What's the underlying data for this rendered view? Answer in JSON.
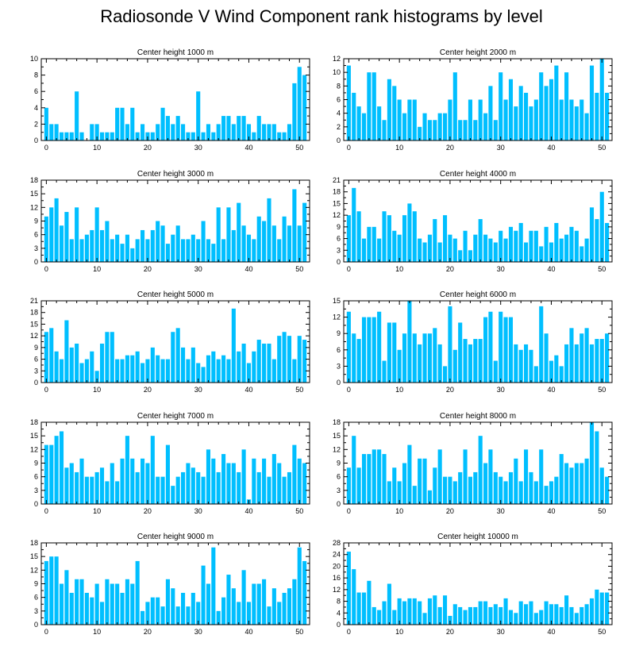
{
  "title": "Radiosonde V Wind Component rank histograms by level",
  "bar_color": "#00BFFF",
  "chart_data": [
    {
      "type": "bar",
      "title": "Center height 1000 m",
      "ylim": [
        0,
        10
      ],
      "yticks": [
        0,
        2,
        4,
        6,
        8,
        10
      ],
      "xticks": [
        0,
        10,
        20,
        30,
        40,
        50
      ],
      "x": [
        0,
        1,
        2,
        3,
        4,
        5,
        6,
        7,
        8,
        9,
        10,
        11,
        12,
        13,
        14,
        15,
        16,
        17,
        18,
        19,
        20,
        21,
        22,
        23,
        24,
        25,
        26,
        27,
        28,
        29,
        30,
        31,
        32,
        33,
        34,
        35,
        36,
        37,
        38,
        39,
        40,
        41,
        42,
        43,
        44,
        45,
        46,
        47,
        48,
        49,
        50,
        51
      ],
      "values": [
        4,
        2,
        2,
        1,
        1,
        1,
        6,
        1,
        0,
        2,
        2,
        1,
        1,
        1,
        4,
        4,
        2,
        4,
        1,
        2,
        1,
        1,
        2,
        4,
        3,
        2,
        3,
        2,
        1,
        1,
        6,
        1,
        2,
        1,
        2,
        3,
        3,
        2,
        3,
        3,
        2,
        1,
        3,
        2,
        2,
        2,
        1,
        1,
        2,
        7,
        9,
        8
      ]
    },
    {
      "type": "bar",
      "title": "Center height 2000 m",
      "ylim": [
        0,
        12
      ],
      "yticks": [
        0,
        2,
        4,
        6,
        8,
        10,
        12
      ],
      "xticks": [
        0,
        10,
        20,
        30,
        40,
        50
      ],
      "x": [
        0,
        1,
        2,
        3,
        4,
        5,
        6,
        7,
        8,
        9,
        10,
        11,
        12,
        13,
        14,
        15,
        16,
        17,
        18,
        19,
        20,
        21,
        22,
        23,
        24,
        25,
        26,
        27,
        28,
        29,
        30,
        31,
        32,
        33,
        34,
        35,
        36,
        37,
        38,
        39,
        40,
        41,
        42,
        43,
        44,
        45,
        46,
        47,
        48,
        49,
        50,
        51
      ],
      "values": [
        11,
        7,
        5,
        4,
        10,
        10,
        5,
        3,
        9,
        8,
        6,
        4,
        6,
        6,
        2,
        4,
        3,
        3,
        4,
        4,
        6,
        10,
        3,
        3,
        6,
        3,
        6,
        4,
        8,
        3,
        10,
        6,
        9,
        5,
        8,
        7,
        5,
        6,
        10,
        8,
        9,
        11,
        6,
        10,
        6,
        5,
        6,
        4,
        11,
        7,
        12,
        7
      ]
    },
    {
      "type": "bar",
      "title": "Center height 3000 m",
      "ylim": [
        0,
        18
      ],
      "yticks": [
        0,
        3,
        6,
        9,
        12,
        15,
        18
      ],
      "xticks": [
        0,
        10,
        20,
        30,
        40,
        50
      ],
      "x": [
        0,
        1,
        2,
        3,
        4,
        5,
        6,
        7,
        8,
        9,
        10,
        11,
        12,
        13,
        14,
        15,
        16,
        17,
        18,
        19,
        20,
        21,
        22,
        23,
        24,
        25,
        26,
        27,
        28,
        29,
        30,
        31,
        32,
        33,
        34,
        35,
        36,
        37,
        38,
        39,
        40,
        41,
        42,
        43,
        44,
        45,
        46,
        47,
        48,
        49,
        50,
        51
      ],
      "values": [
        10,
        12,
        14,
        8,
        11,
        5,
        12,
        5,
        6,
        7,
        12,
        7,
        9,
        5,
        6,
        4,
        6,
        3,
        5,
        7,
        5,
        7,
        9,
        8,
        4,
        6,
        8,
        5,
        5,
        6,
        5,
        9,
        5,
        4,
        12,
        5,
        12,
        7,
        13,
        8,
        6,
        5,
        10,
        9,
        14,
        8,
        5,
        10,
        8,
        16,
        8,
        13
      ]
    },
    {
      "type": "bar",
      "title": "Center height 4000 m",
      "ylim": [
        0,
        21
      ],
      "yticks": [
        0,
        3,
        6,
        9,
        12,
        15,
        18,
        21
      ],
      "xticks": [
        0,
        10,
        20,
        30,
        40,
        50
      ],
      "x": [
        0,
        1,
        2,
        3,
        4,
        5,
        6,
        7,
        8,
        9,
        10,
        11,
        12,
        13,
        14,
        15,
        16,
        17,
        18,
        19,
        20,
        21,
        22,
        23,
        24,
        25,
        26,
        27,
        28,
        29,
        30,
        31,
        32,
        33,
        34,
        35,
        36,
        37,
        38,
        39,
        40,
        41,
        42,
        43,
        44,
        45,
        46,
        47,
        48,
        49,
        50,
        51
      ],
      "values": [
        12,
        19,
        13,
        6,
        9,
        9,
        6,
        13,
        12,
        8,
        7,
        12,
        15,
        13,
        6,
        5,
        7,
        11,
        5,
        12,
        7,
        6,
        3,
        8,
        3,
        7,
        11,
        7,
        6,
        5,
        8,
        6,
        9,
        8,
        10,
        5,
        8,
        8,
        4,
        9,
        5,
        10,
        6,
        7,
        9,
        8,
        4,
        6,
        14,
        11,
        18,
        10
      ]
    },
    {
      "type": "bar",
      "title": "Center height 5000 m",
      "ylim": [
        0,
        21
      ],
      "yticks": [
        0,
        3,
        6,
        9,
        12,
        15,
        18,
        21
      ],
      "xticks": [
        0,
        10,
        20,
        30,
        40,
        50
      ],
      "x": [
        0,
        1,
        2,
        3,
        4,
        5,
        6,
        7,
        8,
        9,
        10,
        11,
        12,
        13,
        14,
        15,
        16,
        17,
        18,
        19,
        20,
        21,
        22,
        23,
        24,
        25,
        26,
        27,
        28,
        29,
        30,
        31,
        32,
        33,
        34,
        35,
        36,
        37,
        38,
        39,
        40,
        41,
        42,
        43,
        44,
        45,
        46,
        47,
        48,
        49,
        50,
        51
      ],
      "values": [
        13,
        14,
        8,
        6,
        16,
        9,
        10,
        5,
        6,
        8,
        3,
        10,
        13,
        13,
        6,
        6,
        7,
        7,
        8,
        5,
        6,
        9,
        7,
        6,
        6,
        13,
        14,
        9,
        6,
        9,
        5,
        4,
        7,
        8,
        6,
        7,
        6,
        19,
        8,
        10,
        5,
        8,
        11,
        10,
        10,
        6,
        12,
        13,
        12,
        6,
        12,
        11
      ]
    },
    {
      "type": "bar",
      "title": "Center height 6000 m",
      "ylim": [
        0,
        15
      ],
      "yticks": [
        0,
        3,
        6,
        9,
        12,
        15
      ],
      "xticks": [
        0,
        10,
        20,
        30,
        40,
        50
      ],
      "x": [
        0,
        1,
        2,
        3,
        4,
        5,
        6,
        7,
        8,
        9,
        10,
        11,
        12,
        13,
        14,
        15,
        16,
        17,
        18,
        19,
        20,
        21,
        22,
        23,
        24,
        25,
        26,
        27,
        28,
        29,
        30,
        31,
        32,
        33,
        34,
        35,
        36,
        37,
        38,
        39,
        40,
        41,
        42,
        43,
        44,
        45,
        46,
        47,
        48,
        49,
        50,
        51
      ],
      "values": [
        13,
        9,
        8,
        12,
        12,
        12,
        13,
        4,
        11,
        11,
        6,
        9,
        15,
        9,
        7,
        9,
        9,
        10,
        7,
        3,
        14,
        6,
        11,
        8,
        7,
        8,
        8,
        12,
        13,
        4,
        13,
        12,
        12,
        7,
        6,
        7,
        6,
        3,
        14,
        9,
        4,
        5,
        3,
        7,
        10,
        7,
        9,
        10,
        7,
        8,
        8,
        9
      ]
    },
    {
      "type": "bar",
      "title": "Center height 7000 m",
      "ylim": [
        0,
        18
      ],
      "yticks": [
        0,
        3,
        6,
        9,
        12,
        15,
        18
      ],
      "xticks": [
        0,
        10,
        20,
        30,
        40,
        50
      ],
      "x": [
        0,
        1,
        2,
        3,
        4,
        5,
        6,
        7,
        8,
        9,
        10,
        11,
        12,
        13,
        14,
        15,
        16,
        17,
        18,
        19,
        20,
        21,
        22,
        23,
        24,
        25,
        26,
        27,
        28,
        29,
        30,
        31,
        32,
        33,
        34,
        35,
        36,
        37,
        38,
        39,
        40,
        41,
        42,
        43,
        44,
        45,
        46,
        47,
        48,
        49,
        50,
        51
      ],
      "values": [
        13,
        13,
        15,
        16,
        8,
        9,
        7,
        10,
        6,
        6,
        7,
        8,
        5,
        9,
        5,
        10,
        15,
        10,
        7,
        10,
        9,
        15,
        6,
        6,
        13,
        4,
        6,
        7,
        9,
        8,
        7,
        6,
        12,
        10,
        7,
        11,
        9,
        9,
        7,
        12,
        1,
        10,
        7,
        10,
        6,
        11,
        9,
        6,
        7,
        13,
        10,
        9
      ]
    },
    {
      "type": "bar",
      "title": "Center height 8000 m",
      "ylim": [
        0,
        18
      ],
      "yticks": [
        0,
        3,
        6,
        9,
        12,
        15,
        18
      ],
      "xticks": [
        0,
        10,
        20,
        30,
        40,
        50
      ],
      "x": [
        0,
        1,
        2,
        3,
        4,
        5,
        6,
        7,
        8,
        9,
        10,
        11,
        12,
        13,
        14,
        15,
        16,
        17,
        18,
        19,
        20,
        21,
        22,
        23,
        24,
        25,
        26,
        27,
        28,
        29,
        30,
        31,
        32,
        33,
        34,
        35,
        36,
        37,
        38,
        39,
        40,
        41,
        42,
        43,
        44,
        45,
        46,
        47,
        48,
        49,
        50,
        51
      ],
      "values": [
        8,
        15,
        8,
        11,
        11,
        12,
        12,
        11,
        5,
        8,
        5,
        9,
        13,
        4,
        10,
        10,
        3,
        8,
        12,
        6,
        6,
        5,
        7,
        12,
        6,
        7,
        15,
        9,
        12,
        7,
        6,
        5,
        7,
        10,
        5,
        12,
        7,
        5,
        12,
        4,
        5,
        6,
        11,
        9,
        8,
        9,
        9,
        10,
        18,
        16,
        8,
        6
      ]
    },
    {
      "type": "bar",
      "title": "Center height 9000 m",
      "ylim": [
        0,
        18
      ],
      "yticks": [
        0,
        3,
        6,
        9,
        12,
        15,
        18
      ],
      "xticks": [
        0,
        10,
        20,
        30,
        40,
        50
      ],
      "x": [
        0,
        1,
        2,
        3,
        4,
        5,
        6,
        7,
        8,
        9,
        10,
        11,
        12,
        13,
        14,
        15,
        16,
        17,
        18,
        19,
        20,
        21,
        22,
        23,
        24,
        25,
        26,
        27,
        28,
        29,
        30,
        31,
        32,
        33,
        34,
        35,
        36,
        37,
        38,
        39,
        40,
        41,
        42,
        43,
        44,
        45,
        46,
        47,
        48,
        49,
        50,
        51
      ],
      "values": [
        14,
        15,
        15,
        9,
        12,
        7,
        10,
        10,
        7,
        6,
        9,
        5,
        10,
        9,
        9,
        7,
        10,
        9,
        14,
        3,
        5,
        6,
        6,
        4,
        10,
        8,
        4,
        7,
        4,
        7,
        5,
        13,
        9,
        17,
        3,
        6,
        11,
        8,
        5,
        12,
        5,
        9,
        9,
        10,
        4,
        8,
        5,
        7,
        8,
        10,
        17,
        14
      ]
    },
    {
      "type": "bar",
      "title": "Center height 10000 m",
      "ylim": [
        0,
        28
      ],
      "yticks": [
        0,
        4,
        8,
        12,
        16,
        20,
        24,
        28
      ],
      "xticks": [
        0,
        10,
        20,
        30,
        40,
        50
      ],
      "x": [
        0,
        1,
        2,
        3,
        4,
        5,
        6,
        7,
        8,
        9,
        10,
        11,
        12,
        13,
        14,
        15,
        16,
        17,
        18,
        19,
        20,
        21,
        22,
        23,
        24,
        25,
        26,
        27,
        28,
        29,
        30,
        31,
        32,
        33,
        34,
        35,
        36,
        37,
        38,
        39,
        40,
        41,
        42,
        43,
        44,
        45,
        46,
        47,
        48,
        49,
        50,
        51
      ],
      "values": [
        25,
        19,
        11,
        11,
        15,
        6,
        5,
        8,
        14,
        5,
        9,
        8,
        9,
        9,
        8,
        4,
        9,
        10,
        6,
        10,
        3,
        7,
        6,
        5,
        6,
        6,
        8,
        8,
        6,
        7,
        6,
        9,
        5,
        4,
        8,
        7,
        8,
        4,
        5,
        8,
        7,
        7,
        6,
        10,
        6,
        4,
        6,
        7,
        9,
        12,
        11,
        11
      ]
    }
  ]
}
